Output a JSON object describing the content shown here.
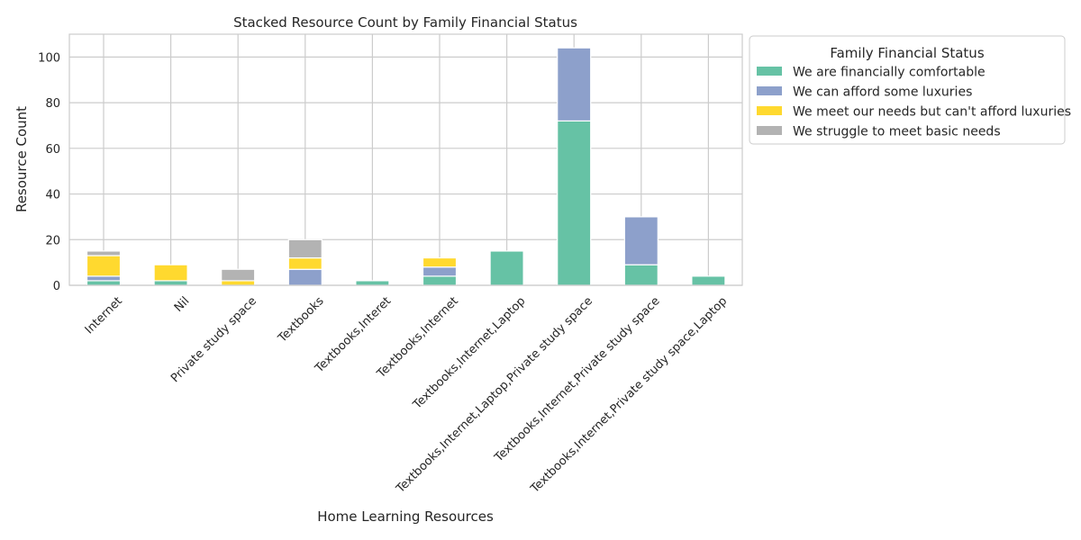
{
  "chart_data": {
    "type": "bar",
    "stacked": true,
    "title": "Stacked Resource Count by Family Financial Status",
    "xlabel": "Home Learning Resources",
    "ylabel": "Resource Count",
    "ylim": [
      0,
      110
    ],
    "yticks": [
      0,
      20,
      40,
      60,
      80,
      100
    ],
    "grid": true,
    "legend_title": "Family Financial Status",
    "legend_position": "outside-right-top",
    "categories": [
      "Internet",
      "Nil",
      "Private study space",
      "Textbooks",
      "Textbooks,Interet",
      "Textbooks,Internet",
      "Textbooks,Internet,Laptop",
      "Textbooks,Internet,Laptop,Private study space",
      "Textbooks,Internet,Private study space",
      "Textbooks,Internet,Private study space,Laptop"
    ],
    "series": [
      {
        "name": "We are financially comfortable",
        "color": "#66c2a5",
        "values": [
          2,
          2,
          0,
          0,
          2,
          4,
          15,
          72,
          9,
          4
        ]
      },
      {
        "name": "We can afford some luxuries",
        "color": "#8da0cb",
        "values": [
          2,
          0,
          0,
          7,
          0,
          4,
          0,
          32,
          21,
          0
        ]
      },
      {
        "name": "We meet our needs but can't afford luxuries",
        "color": "#ffd92f",
        "values": [
          9,
          7,
          2,
          5,
          0,
          4,
          0,
          0,
          0,
          0
        ]
      },
      {
        "name": "We struggle to meet basic needs",
        "color": "#b3b3b3",
        "values": [
          2,
          0,
          5,
          8,
          0,
          0,
          0,
          0,
          0,
          0
        ]
      }
    ]
  }
}
